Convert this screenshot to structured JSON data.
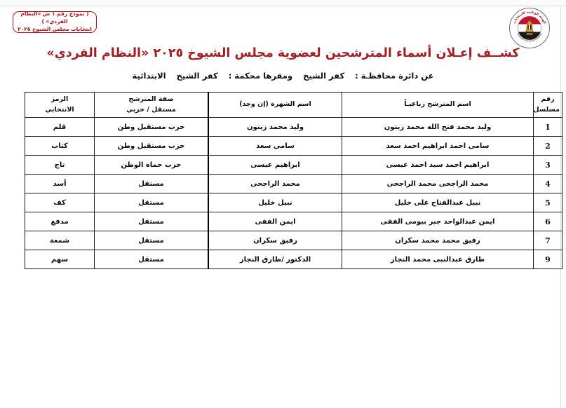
{
  "colors": {
    "accent_red": "#a61d22",
    "box_red": "#b01116",
    "table_border": "#1b1b1b",
    "flag_red": "#c8102e",
    "flag_black": "#1a1a1a",
    "eagle_gold": "#c49a2c"
  },
  "form_box": {
    "line1": "( نموذج رقم ١ ش «النظام الفردي» )",
    "line2": "انتخابات مجلس الشيوخ ٢٠٢٥"
  },
  "emblem": {
    "name": "national-elections-authority-emblem",
    "top_arc_text": "الهيئة الوطنية للانتخابات",
    "bottom_arc_text": "National Elections Authority"
  },
  "title": "كشــف إعـلان أسماء المترشحين لعضوية مجلس الشيوخ ٢٠٢٥ «النظام الفردي»",
  "subtitle": {
    "district_label": "عن دائرة محافظـة :",
    "district_value": "كفر الشيخ",
    "court_label": "ومقرها محكمة :",
    "court_value": "كفر الشيخ",
    "court_suffix": "الابتدائية"
  },
  "table": {
    "columns": [
      {
        "id": "serial",
        "line1": "رقم",
        "line2": "مسلسل"
      },
      {
        "id": "name",
        "line1": "اسم المترشح رباعيـاً",
        "line2": ""
      },
      {
        "id": "fame",
        "line1": "اسم الشهرة (إن وجد)",
        "line2": ""
      },
      {
        "id": "capacity",
        "line1": "صفة المترشح",
        "line2": "مستقل / حزبي"
      },
      {
        "id": "symbol",
        "line1": "الرمز",
        "line2": "الانتخابي"
      }
    ],
    "rows": [
      {
        "serial": "1",
        "name": "وليد محمد فتح الله محمد زيتون",
        "fame": "وليد محمد زيتون",
        "capacity": "حزب مستقبل وطن",
        "symbol": "قلم"
      },
      {
        "serial": "2",
        "name": "سامى احمد ابراهيم احمد سعد",
        "fame": "سامى سعد",
        "capacity": "حزب مستقبل وطن",
        "symbol": "كتاب"
      },
      {
        "serial": "3",
        "name": "ابراهيم احمد سيد احمد عيسى",
        "fame": "ابراهيم عيسى",
        "capacity": "حزب حماة الوطن",
        "symbol": "تاج"
      },
      {
        "serial": "4",
        "name": "محمد الراجحى محمد الراجحى",
        "fame": "محمد الراجحى",
        "capacity": "مستقل",
        "symbol": "أسد"
      },
      {
        "serial": "5",
        "name": "نبيل عبدالفتاح على خليل",
        "fame": "نبيل خليل",
        "capacity": "مستقل",
        "symbol": "كف"
      },
      {
        "serial": "6",
        "name": "ايمن عبدالواحد جبر بيومى الفقى",
        "fame": "ايمن الفقى",
        "capacity": "مستقل",
        "symbol": "مدفع"
      },
      {
        "serial": "7",
        "name": "رفيق محمد محمد سكران",
        "fame": "رفيق سكران",
        "capacity": "مستقل",
        "symbol": "شمعة"
      },
      {
        "serial": "9",
        "name": "طارق عبدالنبى محمد النجار",
        "fame": "الدكتور /طارق النجار",
        "capacity": "مستقل",
        "symbol": "سهم"
      }
    ]
  }
}
